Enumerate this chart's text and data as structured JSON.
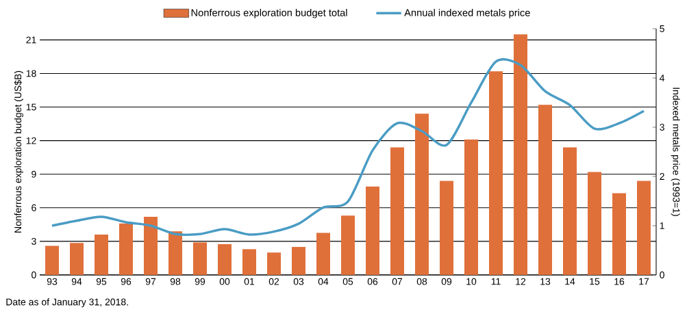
{
  "chart_data": {
    "type": "bar",
    "categories": [
      "93",
      "94",
      "95",
      "96",
      "97",
      "98",
      "99",
      "00",
      "01",
      "02",
      "03",
      "04",
      "05",
      "06",
      "07",
      "08",
      "09",
      "10",
      "11",
      "12",
      "13",
      "14",
      "15",
      "16",
      "17"
    ],
    "series": [
      {
        "name": "Nonferrous exploration budget total",
        "color": "#e0703a",
        "values": [
          2.6,
          2.85,
          3.6,
          4.6,
          5.2,
          3.9,
          2.9,
          2.75,
          2.3,
          2.0,
          2.5,
          3.75,
          5.3,
          7.9,
          11.4,
          14.4,
          8.4,
          12.1,
          18.2,
          21.5,
          15.2,
          11.4,
          9.2,
          7.3,
          8.4
        ]
      },
      {
        "name": "Annual indexed metals price",
        "type": "line",
        "axis": "y2",
        "color": "#4a9cc4",
        "values": [
          1.0,
          1.1,
          1.18,
          1.07,
          1.0,
          0.83,
          0.83,
          0.93,
          0.82,
          0.88,
          1.04,
          1.37,
          1.49,
          2.53,
          3.08,
          2.92,
          2.64,
          3.5,
          4.33,
          4.26,
          3.73,
          3.45,
          2.97,
          3.08,
          3.33
        ]
      }
    ],
    "ylabel": "Nonferrous exploration budget (US$B)",
    "y2label": "Indexed metals price (1993=1)",
    "ylim": [
      0,
      22
    ],
    "yticks": [
      0,
      3,
      6,
      9,
      12,
      15,
      18,
      21
    ],
    "y2lim": [
      0,
      5
    ],
    "y2ticks": [
      0,
      1,
      2,
      3,
      4,
      5
    ],
    "grid": "y",
    "legend": "top",
    "annotations": [
      "Date as of January 31, 2018."
    ]
  }
}
